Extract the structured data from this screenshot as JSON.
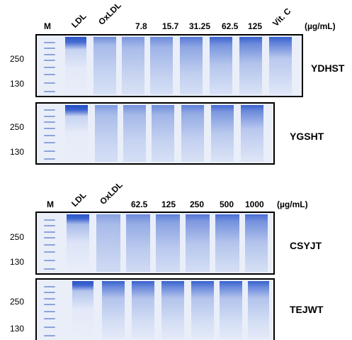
{
  "top_panel": {
    "lane_labels": [
      "M",
      "LDL",
      "OxLDL",
      "7.8",
      "15.7",
      "31.25",
      "62.5",
      "125",
      "Vit. C"
    ],
    "unit": "(µg/mL)",
    "gels": [
      {
        "name": "YDHST",
        "mw_labels": [
          "250",
          "130"
        ]
      },
      {
        "name": "YGSHT",
        "mw_labels": [
          "250",
          "130"
        ]
      }
    ]
  },
  "bottom_panel": {
    "lane_labels": [
      "M",
      "LDL",
      "OxLDL",
      "62.5",
      "125",
      "250",
      "500",
      "1000"
    ],
    "unit": "(µg/mL)",
    "gels": [
      {
        "name": "CSYJT",
        "mw_labels": [
          "250",
          "130"
        ]
      },
      {
        "name": "TEJWT",
        "mw_labels": [
          "250",
          "130"
        ]
      }
    ]
  },
  "colors": {
    "band_dark": "#2a55c8",
    "band_mid": "#7f9be0",
    "smear_light": "#c9d5f1",
    "gel_background": "#e9eef9"
  }
}
